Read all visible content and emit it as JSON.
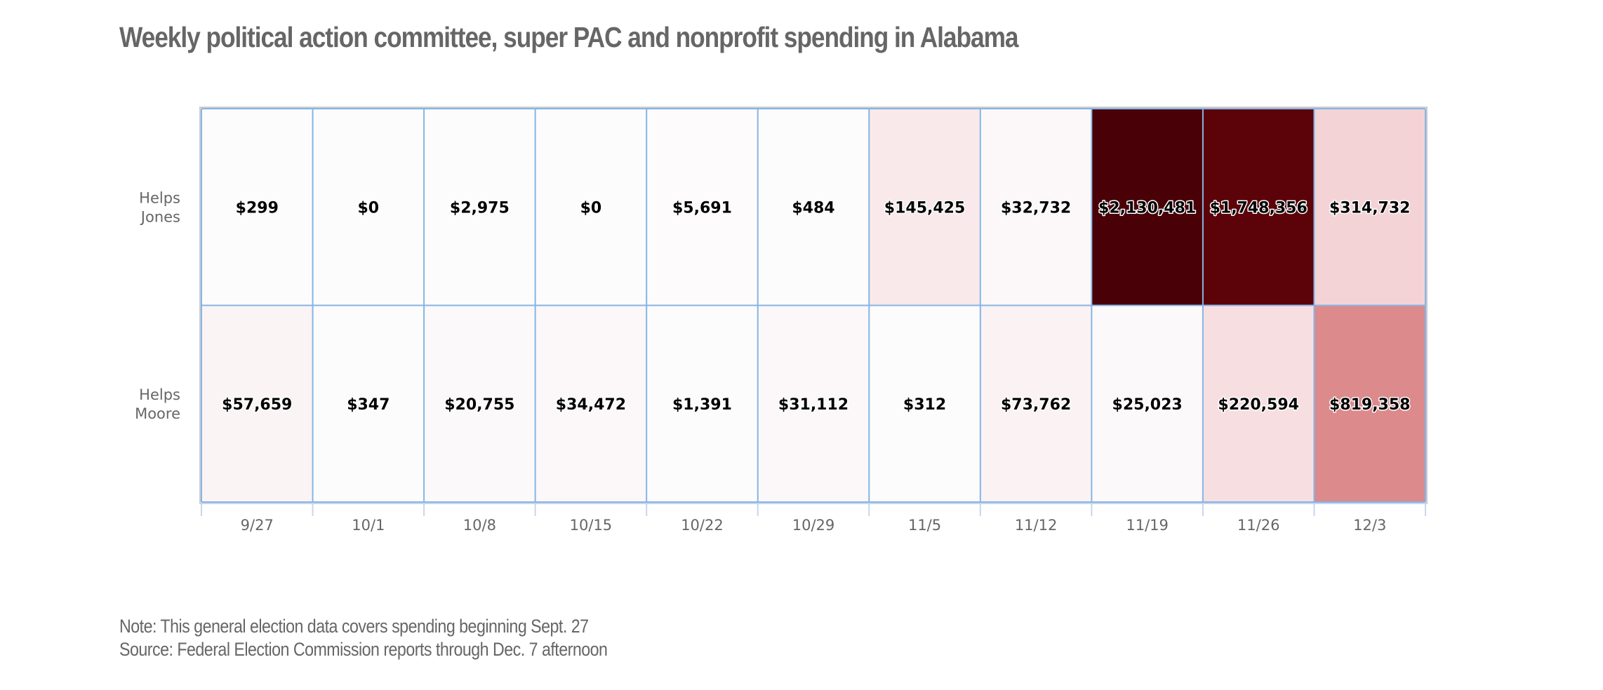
{
  "chart_data": {
    "type": "heatmap",
    "title": "Weekly political action committee, super PAC and nonprofit spending in Alabama",
    "xlabel": "",
    "ylabel": "",
    "categories": [
      "9/27",
      "10/1",
      "10/8",
      "10/15",
      "10/22",
      "10/29",
      "11/5",
      "11/12",
      "11/19",
      "11/26",
      "12/3"
    ],
    "rows": [
      {
        "label_lines": [
          "Helps",
          "Jones"
        ],
        "name": "Helps Jones",
        "values": [
          299,
          0,
          2975,
          0,
          5691,
          484,
          145425,
          32732,
          2130481,
          1748356,
          314732
        ],
        "labels": [
          "$299",
          "$0",
          "$2,975",
          "$0",
          "$5,691",
          "$484",
          "$145,425",
          "$32,732",
          "$2,130,481",
          "$1,748,356",
          "$314,732"
        ]
      },
      {
        "label_lines": [
          "Helps",
          "Moore"
        ],
        "name": "Helps Moore",
        "values": [
          57659,
          347,
          20755,
          34472,
          1391,
          31112,
          312,
          73762,
          25023,
          220594,
          819358
        ],
        "labels": [
          "$57,659",
          "$347",
          "$20,755",
          "$34,472",
          "$1,391",
          "$31,112",
          "$312",
          "$73,762",
          "$25,023",
          "$220,594",
          "$819,358"
        ]
      }
    ],
    "color_scale": {
      "stops": [
        {
          "value": 0,
          "color": "#fdfcfd"
        },
        {
          "value": 145425,
          "color": "#f9e9ea"
        },
        {
          "value": 314732,
          "color": "#f4d3d6"
        },
        {
          "value": 819358,
          "color": "#dc8a8c"
        },
        {
          "value": 1748356,
          "color": "#5c0309"
        },
        {
          "value": 2130481,
          "color": "#4a0007"
        }
      ]
    },
    "grid_color": "#85b5e5",
    "grid": true,
    "legend": "none"
  },
  "footer": {
    "note": "Note: This general election data covers spending beginning Sept. 27",
    "source": "Source: Federal Election Commission reports through Dec. 7 afternoon"
  }
}
